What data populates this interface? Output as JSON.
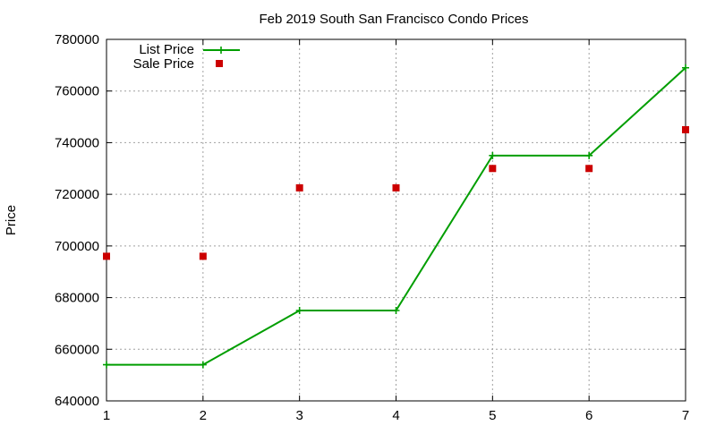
{
  "chart_data": {
    "type": "line",
    "title": "Feb 2019 South San Francisco Condo Prices",
    "xlabel": "",
    "ylabel": "Price",
    "x": [
      1,
      2,
      3,
      4,
      5,
      6,
      7
    ],
    "xlim": [
      1,
      7
    ],
    "ylim": [
      640000,
      780000
    ],
    "x_ticks": [
      "1",
      "2",
      "3",
      "4",
      "5",
      "6",
      "7"
    ],
    "y_ticks": [
      "640000",
      "660000",
      "680000",
      "700000",
      "720000",
      "740000",
      "760000",
      "780000"
    ],
    "grid": true,
    "legend_position": "top-left",
    "series": [
      {
        "name": "List Price",
        "style": "line-with-plus-markers",
        "color": "#009e00",
        "values": [
          654000,
          654000,
          675000,
          675000,
          735000,
          735000,
          769000
        ]
      },
      {
        "name": "Sale Price",
        "style": "square-markers",
        "color": "#cc0000",
        "values": [
          696000,
          696000,
          722500,
          722500,
          730000,
          730000,
          745000
        ]
      }
    ]
  }
}
